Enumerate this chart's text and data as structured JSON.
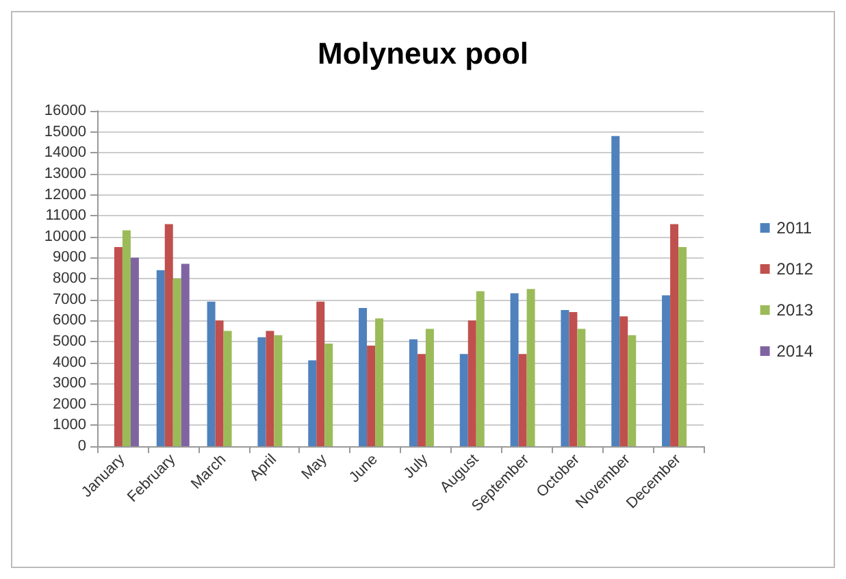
{
  "chart_data": {
    "type": "bar",
    "title": "Molyneux pool",
    "categories": [
      "January",
      "February",
      "March",
      "April",
      "May",
      "June",
      "July",
      "August",
      "September",
      "October",
      "November",
      "December"
    ],
    "series": [
      {
        "name": "2011",
        "color": "#4f81bd",
        "values": [
          null,
          8400,
          6900,
          5200,
          4100,
          6600,
          5100,
          4400,
          7300,
          6500,
          14800,
          7200
        ]
      },
      {
        "name": "2012",
        "color": "#c0504d",
        "values": [
          9500,
          10600,
          6000,
          5500,
          6900,
          4800,
          4400,
          6000,
          4400,
          6400,
          6200,
          10600
        ]
      },
      {
        "name": "2013",
        "color": "#9bbb59",
        "values": [
          10300,
          8000,
          5500,
          5300,
          4900,
          6100,
          5600,
          7400,
          7500,
          5600,
          5300,
          9500
        ]
      },
      {
        "name": "2014",
        "color": "#8064a2",
        "values": [
          9000,
          8700,
          null,
          null,
          null,
          null,
          null,
          null,
          null,
          null,
          null,
          null
        ]
      }
    ],
    "ylim": [
      0,
      16000
    ],
    "yticks": [
      0,
      1000,
      2000,
      3000,
      4000,
      5000,
      6000,
      7000,
      8000,
      9000,
      10000,
      11000,
      12000,
      13000,
      14000,
      15000,
      16000
    ],
    "grid": "y",
    "legend": "right"
  }
}
